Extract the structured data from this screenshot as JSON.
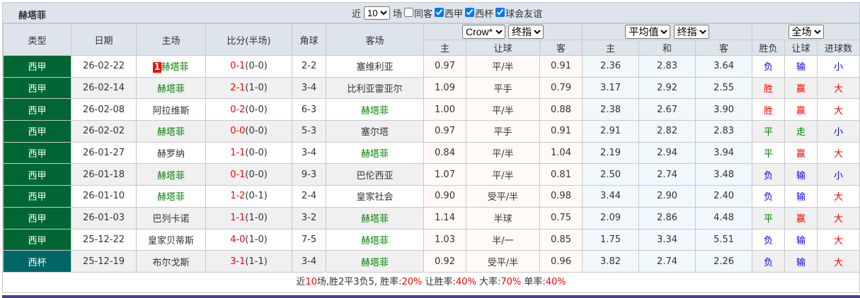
{
  "title": "赫塔菲",
  "filters": {
    "prefix": "近",
    "count": "10",
    "suffix": "场",
    "options": [
      {
        "label": "同客",
        "checked": false
      },
      {
        "label": "西甲",
        "checked": true
      },
      {
        "label": "西杯",
        "checked": true
      },
      {
        "label": "球会友谊",
        "checked": true
      }
    ]
  },
  "headers": {
    "type": "类型",
    "date": "日期",
    "home": "主场",
    "score": "比分(半场)",
    "corner": "角球",
    "away": "客场",
    "odds_company": "Crow*",
    "odds_kind": "终指",
    "avg_company": "平均值",
    "avg_kind": "终指",
    "scope": "全场",
    "sub": [
      "主",
      "让球",
      "客",
      "主",
      "和",
      "客",
      "胜负",
      "让球",
      "进球数"
    ]
  },
  "team": "赫塔菲",
  "rows": [
    {
      "league": "西甲",
      "cup": false,
      "date": "26-02-22",
      "rank": "1",
      "home": "赫塔菲",
      "score": "0-1",
      "half": "(0-0)",
      "corner": "2-2",
      "away": "塞维利亚",
      "o1": "0.97",
      "hc": "平/半",
      "o2": "0.91",
      "a1": "2.36",
      "a2": "2.83",
      "a3": "3.64",
      "wl": "负",
      "hr": "输",
      "ou": "小"
    },
    {
      "league": "西甲",
      "cup": false,
      "date": "26-02-14",
      "home": "赫塔菲",
      "score": "2-1",
      "half": "(1-0)",
      "corner": "3-4",
      "away": "比利亚雷亚尔",
      "o1": "1.09",
      "hc": "平手",
      "o2": "0.79",
      "a1": "3.17",
      "a2": "2.92",
      "a3": "2.55",
      "wl": "胜",
      "hr": "赢",
      "ou": "大"
    },
    {
      "league": "西甲",
      "cup": false,
      "date": "26-02-08",
      "home": "阿拉维斯",
      "score": "0-2",
      "half": "(0-0)",
      "corner": "6-3",
      "away": "赫塔菲",
      "o1": "1.00",
      "hc": "平/半",
      "o2": "0.88",
      "a1": "2.38",
      "a2": "2.67",
      "a3": "3.90",
      "wl": "胜",
      "hr": "赢",
      "ou": "大"
    },
    {
      "league": "西甲",
      "cup": false,
      "date": "26-02-02",
      "home": "赫塔菲",
      "score": "0-0",
      "half": "(0-0)",
      "corner": "5-3",
      "away": "塞尔塔",
      "o1": "0.97",
      "hc": "平手",
      "o2": "0.91",
      "a1": "2.91",
      "a2": "2.82",
      "a3": "2.83",
      "wl": "平",
      "hr": "走",
      "ou": "小"
    },
    {
      "league": "西甲",
      "cup": false,
      "date": "26-01-27",
      "home": "赫罗纳",
      "score": "1-1",
      "half": "(0-0)",
      "corner": "3-4",
      "away": "赫塔菲",
      "o1": "0.84",
      "hc": "平/半",
      "o2": "1.04",
      "a1": "2.19",
      "a2": "2.94",
      "a3": "3.94",
      "wl": "平",
      "hr": "赢",
      "ou": "大"
    },
    {
      "league": "西甲",
      "cup": false,
      "date": "26-01-18",
      "home": "赫塔菲",
      "score": "0-1",
      "half": "(0-0)",
      "corner": "9-3",
      "away": "巴伦西亚",
      "o1": "1.07",
      "hc": "平/半",
      "o2": "0.81",
      "a1": "2.50",
      "a2": "2.74",
      "a3": "3.48",
      "wl": "负",
      "hr": "输",
      "ou": "小"
    },
    {
      "league": "西甲",
      "cup": false,
      "date": "26-01-10",
      "home": "赫塔菲",
      "score": "1-2",
      "half": "(0-1)",
      "corner": "2-4",
      "away": "皇家社会",
      "o1": "0.90",
      "hc": "受平/半",
      "o2": "0.98",
      "a1": "3.44",
      "a2": "2.90",
      "a3": "2.40",
      "wl": "负",
      "hr": "输",
      "ou": "大"
    },
    {
      "league": "西甲",
      "cup": false,
      "date": "26-01-03",
      "home": "巴列卡诺",
      "score": "1-1",
      "half": "(1-0)",
      "corner": "3-2",
      "away": "赫塔菲",
      "o1": "1.14",
      "hc": "半球",
      "o2": "0.75",
      "a1": "2.09",
      "a2": "2.86",
      "a3": "4.48",
      "wl": "平",
      "hr": "赢",
      "ou": "大"
    },
    {
      "league": "西甲",
      "cup": false,
      "date": "25-12-22",
      "home": "皇家贝蒂斯",
      "score": "4-0",
      "half": "(1-0)",
      "corner": "7-5",
      "away": "赫塔菲",
      "o1": "1.03",
      "hc": "半/一",
      "o2": "0.85",
      "a1": "1.75",
      "a2": "3.34",
      "a3": "5.51",
      "wl": "负",
      "hr": "输",
      "ou": "大"
    },
    {
      "league": "西杯",
      "cup": true,
      "date": "25-12-19",
      "home": "布尔戈斯",
      "score": "3-1",
      "half": "(1-1)",
      "corner": "3-4",
      "away": "赫塔菲",
      "o1": "0.92",
      "hc": "受平/半",
      "o2": "0.96",
      "a1": "3.82",
      "a2": "2.74",
      "a3": "2.26",
      "wl": "负",
      "hr": "输",
      "ou": "大"
    }
  ],
  "summary": [
    {
      "t": "近",
      "c": ""
    },
    {
      "t": "10",
      "c": "red"
    },
    {
      "t": "场,胜2平3负5, 胜率:",
      "c": ""
    },
    {
      "t": "20%",
      "c": "red"
    },
    {
      "t": " 让胜率:",
      "c": ""
    },
    {
      "t": "40%",
      "c": "red"
    },
    {
      "t": " 大率:",
      "c": ""
    },
    {
      "t": "70%",
      "c": "red"
    },
    {
      "t": " 单率:",
      "c": ""
    },
    {
      "t": "40%",
      "c": "red"
    }
  ],
  "colors": {
    "league": "#006633",
    "cup": "#006666",
    "win": "#ff0000",
    "draw": "#008000",
    "loss": "#0000ff"
  }
}
